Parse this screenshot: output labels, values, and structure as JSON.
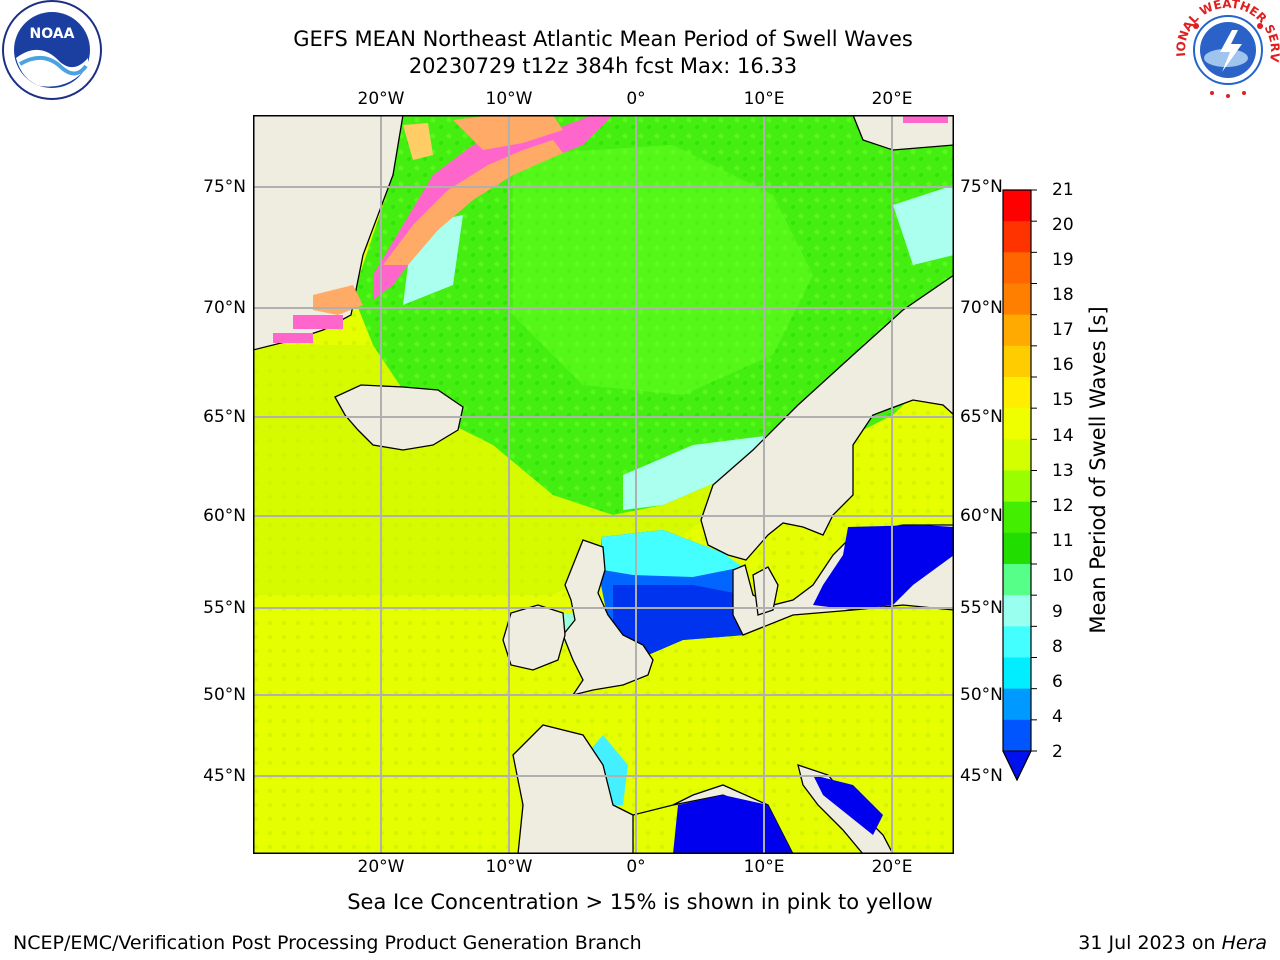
{
  "title_line1": "GEFS MEAN Northeast Atlantic Mean Period of Swell Waves",
  "title_line2": "20230729 t12z 384h fcst   Max: 16.33",
  "subtitle": "Sea Ice Concentration > 15% is shown in pink to yellow",
  "footer_left": "NCEP/EMC/Verification Post Processing Product Generation Branch",
  "footer_right_date": "31 Jul 2023 on ",
  "footer_right_host": "Hera",
  "logo_left_icon": "noaa-logo",
  "logo_left_text": "NOAA",
  "logo_right_icon": "national-weather-service-logo",
  "logo_right_text": "NATIONAL WEATHER SERVICE",
  "lon_labels": [
    "20°W",
    "10°W",
    "0°",
    "10°E",
    "20°E"
  ],
  "lat_labels": [
    "75°N",
    "70°N",
    "65°N",
    "60°N",
    "55°N",
    "50°N",
    "45°N"
  ],
  "colorbar": {
    "label": "Mean Period of Swell Waves [s]",
    "ticks": [
      "21",
      "20",
      "19",
      "18",
      "17",
      "16",
      "15",
      "14",
      "13",
      "12",
      "11",
      "10",
      "9",
      "8",
      "6",
      "4",
      "2"
    ],
    "colors": [
      "#ff0000",
      "#ff3300",
      "#ff6600",
      "#ff8000",
      "#ffaa00",
      "#ffcc00",
      "#ffee00",
      "#f0ff00",
      "#d4ff00",
      "#99ff00",
      "#44ee00",
      "#22dd00",
      "#55ff88",
      "#99ffee",
      "#44ffff",
      "#00eeff",
      "#0099ff",
      "#0055ff"
    ],
    "extend_color": "#0011ee"
  },
  "colors": {
    "land": "#eeeddf",
    "grid": "#b0b0b0",
    "ice_pink": "#ff66cc",
    "ice_orange": "#ffaa66",
    "sea_low": "#0022ee"
  }
}
